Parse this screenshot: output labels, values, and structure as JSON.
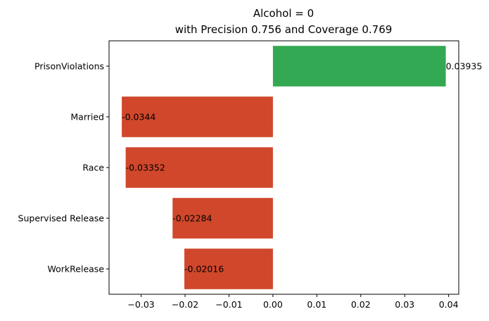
{
  "chart_data": {
    "type": "bar",
    "orientation": "horizontal",
    "title": "Alcohol = 0",
    "subtitle": "with Precision 0.756 and Coverage 0.769",
    "categories": [
      "PrisonViolations",
      "Married",
      "Race",
      "Supervised Release",
      "WorkRelease"
    ],
    "values": [
      0.03935,
      -0.0344,
      -0.03352,
      -0.02284,
      -0.02016
    ],
    "value_labels": [
      "0.03935",
      "-0.0344",
      "-0.03352",
      "-0.02284",
      "-0.02016"
    ],
    "xlabel": "",
    "ylabel": "",
    "xlim": [
      -0.0373,
      0.0423
    ],
    "xticks": [
      -0.03,
      -0.02,
      -0.01,
      0.0,
      0.01,
      0.02,
      0.03,
      0.04
    ],
    "xtick_labels": [
      "−0.03",
      "−0.02",
      "−0.01",
      "0.00",
      "0.01",
      "0.02",
      "0.03",
      "0.04"
    ],
    "grid": false,
    "colors": {
      "positive": "#33a852",
      "negative": "#d0472c"
    }
  }
}
